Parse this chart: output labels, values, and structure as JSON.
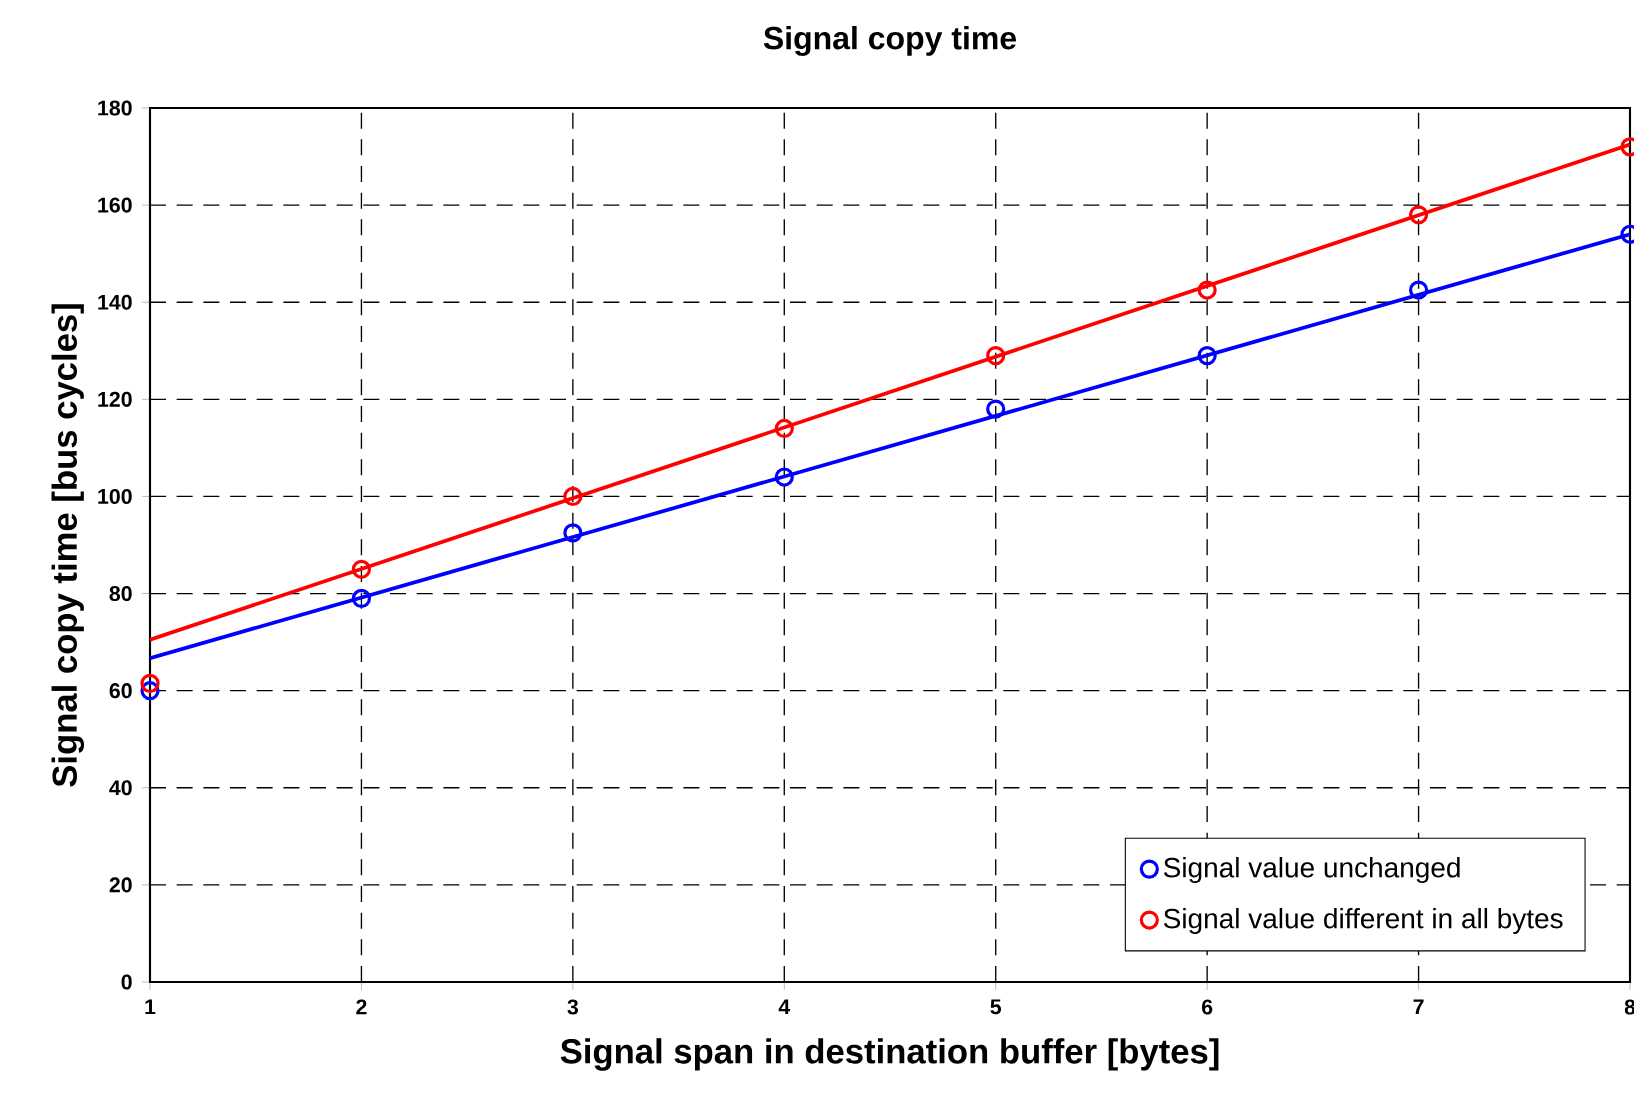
{
  "chart_data": {
    "type": "scatter",
    "title": "Signal copy time",
    "xlabel": "Signal span in destination buffer [bytes]",
    "ylabel": "Signal copy time [bus cycles]",
    "xlim": [
      1,
      8
    ],
    "ylim": [
      0,
      180
    ],
    "xticks": [
      1,
      2,
      3,
      4,
      5,
      6,
      7,
      8
    ],
    "yticks": [
      0,
      20,
      40,
      60,
      80,
      100,
      120,
      140,
      160,
      180
    ],
    "grid": true,
    "legend": "bottom right",
    "marker": "circle",
    "series": [
      {
        "name": "Signal value unchanged",
        "color": "#0000ff",
        "x": [
          1,
          2,
          3,
          4,
          5,
          6,
          7,
          8
        ],
        "values": [
          60,
          79,
          92.5,
          104,
          118,
          129,
          142.5,
          154
        ]
      },
      {
        "name": "Signal value different in all bytes",
        "color": "#ff0000",
        "x": [
          1,
          2,
          3,
          4,
          5,
          6,
          7,
          8
        ],
        "values": [
          61.5,
          85,
          100,
          114,
          129,
          142.5,
          158,
          172
        ]
      },
      {
        "type": "line",
        "marker": "none",
        "color": "#0000ff",
        "x": [
          1,
          8
        ],
        "values": [
          66.7,
          154
        ]
      },
      {
        "type": "line",
        "marker": "none",
        "color": "#ff0000",
        "x": [
          1,
          8
        ],
        "values": [
          70.5,
          172.5
        ]
      }
    ]
  }
}
